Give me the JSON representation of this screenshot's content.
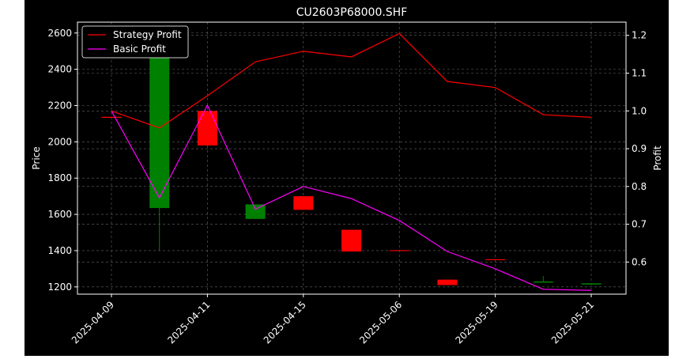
{
  "chart_data": {
    "type": "candlestick",
    "title": "CU2603P68000.SHF",
    "ylabel_left": "Price",
    "ylabel_right": "Profit",
    "xlabel": "",
    "ylim_left": [
      1160,
      2660
    ],
    "ylim_right": [
      0.515,
      1.235
    ],
    "yticks_left": [
      1200,
      1400,
      1600,
      1800,
      2000,
      2200,
      2400,
      2600
    ],
    "yticks_right": [
      0.6,
      0.7,
      0.8,
      0.9,
      1.0,
      1.1,
      1.2
    ],
    "grid": true,
    "legend_position": "top-left",
    "x_tick_labels": [
      "2025-04-09",
      "2025-04-11",
      "2025-04-15",
      "2025-05-06",
      "2025-05-19",
      "2025-05-21"
    ],
    "candles": [
      {
        "open": 2135,
        "close": 2135,
        "high": 2135,
        "low": 2135
      },
      {
        "open": 1635,
        "close": 2500,
        "high": 2500,
        "low": 1400
      },
      {
        "open": 2170,
        "close": 1980,
        "high": 2170,
        "low": 1980
      },
      {
        "open": 1575,
        "close": 1655,
        "high": 1655,
        "low": 1575
      },
      {
        "open": 1700,
        "close": 1625,
        "high": 1700,
        "low": 1625
      },
      {
        "open": 1515,
        "close": 1395,
        "high": 1515,
        "low": 1395
      },
      {
        "open": 1400,
        "close": 1400,
        "high": 1400,
        "low": 1400
      },
      {
        "open": 1240,
        "close": 1210,
        "high": 1240,
        "low": 1210
      },
      {
        "open": 1350,
        "close": 1350,
        "high": 1350,
        "low": 1350
      },
      {
        "open": 1225,
        "close": 1230,
        "high": 1260,
        "low": 1225
      },
      {
        "open": 1215,
        "close": 1220,
        "high": 1220,
        "low": 1210
      }
    ],
    "series": [
      {
        "name": "Strategy Profit",
        "color": "#ff0000",
        "values": [
          1.0,
          0.955,
          1.04,
          1.13,
          1.158,
          1.143,
          1.205,
          1.078,
          1.062,
          0.99,
          0.983
        ]
      },
      {
        "name": "Basic Profit",
        "color": "#ff00ff",
        "values": [
          1.0,
          0.77,
          1.015,
          0.74,
          0.8,
          0.768,
          0.71,
          0.628,
          0.582,
          0.528,
          0.525
        ]
      }
    ],
    "colors": {
      "up": "#008000",
      "down": "#ff0000",
      "background": "#000000",
      "foreground": "#ffffff",
      "grid": "#808080"
    }
  }
}
